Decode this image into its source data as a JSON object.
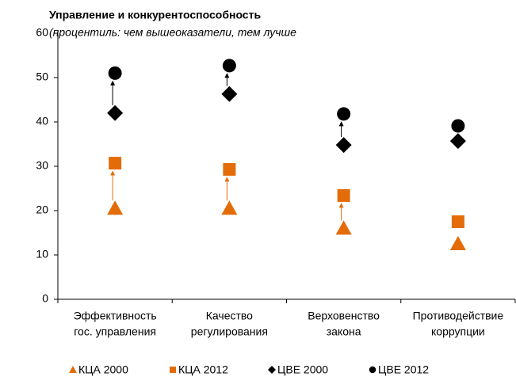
{
  "chart_data": {
    "type": "scatter",
    "title": "Управление и конкурентоспособность",
    "subtitle": "(процентиль: чем вышеоказатели, тем лучше",
    "categories": [
      [
        "Эффективность",
        "гос. управления"
      ],
      [
        "Качество",
        "регулирования"
      ],
      [
        "Верховенство",
        "закона"
      ],
      [
        "Противодействие",
        "коррупции"
      ]
    ],
    "series": [
      {
        "name": "КЦА 2000",
        "color": "#e36c09",
        "marker": "triangle",
        "values": [
          20.5,
          20.5,
          16,
          12.5
        ]
      },
      {
        "name": "КЦА 2012",
        "color": "#e36c09",
        "marker": "square",
        "values": [
          30.7,
          29.3,
          23.4,
          17.5
        ]
      },
      {
        "name": "ЦВЕ 2000",
        "color": "#000000",
        "marker": "diamond",
        "values": [
          42,
          46.3,
          34.8,
          35.7
        ]
      },
      {
        "name": "ЦВЕ 2012",
        "color": "#000000",
        "marker": "circle",
        "values": [
          51,
          52.7,
          41.8,
          39.1
        ]
      }
    ],
    "ylim": [
      0,
      60
    ],
    "yticks": [
      0,
      10,
      20,
      30,
      40,
      50,
      60
    ],
    "grid": false,
    "legend": "bottom"
  }
}
